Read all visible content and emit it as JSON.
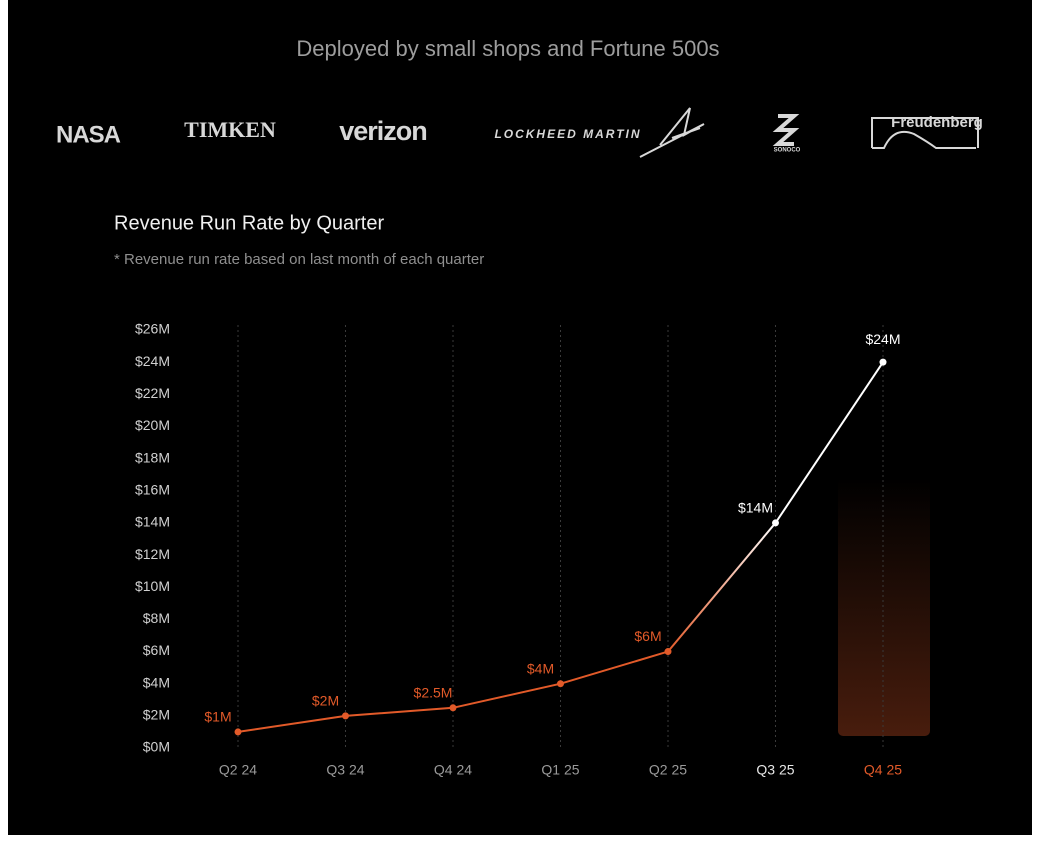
{
  "header": "Deployed by small shops and Fortune 500s",
  "logos": [
    "NASA",
    "TIMKEN",
    "verizon",
    "LOCKHEED MARTIN",
    "SONOCO",
    "Freudenberg"
  ],
  "chart_data": {
    "type": "line",
    "title": "Revenue Run Rate by Quarter",
    "subtitle": "* Revenue run rate based on last month of each quarter",
    "categories": [
      "Q2 24",
      "Q3 24",
      "Q4 24",
      "Q1 25",
      "Q2 25",
      "Q3 25",
      "Q4 25"
    ],
    "values": [
      1,
      2,
      2.5,
      4,
      6,
      14,
      24
    ],
    "value_labels": [
      "$1M",
      "$2M",
      "$2.5M",
      "$4M",
      "$6M",
      "$14M",
      "$24M"
    ],
    "color": "#e25a29",
    "highlight_color": "#ffffff",
    "label_colors": [
      "#e25a29",
      "#e25a29",
      "#e25a29",
      "#e25a29",
      "#e25a29",
      "#ffffff",
      "#ffffff"
    ],
    "category_label_colors": [
      "#9a9a9a",
      "#9a9a9a",
      "#9a9a9a",
      "#9a9a9a",
      "#9a9a9a",
      "#e6e6e6",
      "#e25a29"
    ],
    "ylim": [
      0,
      26
    ],
    "yticks": [
      {
        "value": 0,
        "label": "$0M"
      },
      {
        "value": 2,
        "label": "$2M"
      },
      {
        "value": 4,
        "label": "$4M"
      },
      {
        "value": 6,
        "label": "$6M"
      },
      {
        "value": 8,
        "label": "$8M"
      },
      {
        "value": 10,
        "label": "$10M"
      },
      {
        "value": 12,
        "label": "$12M"
      },
      {
        "value": 14,
        "label": "$14M"
      },
      {
        "value": 16,
        "label": "$16M"
      },
      {
        "value": 18,
        "label": "$18M"
      },
      {
        "value": 20,
        "label": "$20M"
      },
      {
        "value": 22,
        "label": "$22M"
      },
      {
        "value": 24,
        "label": "$24M"
      },
      {
        "value": 26,
        "label": "$26M"
      }
    ],
    "grid": true
  }
}
